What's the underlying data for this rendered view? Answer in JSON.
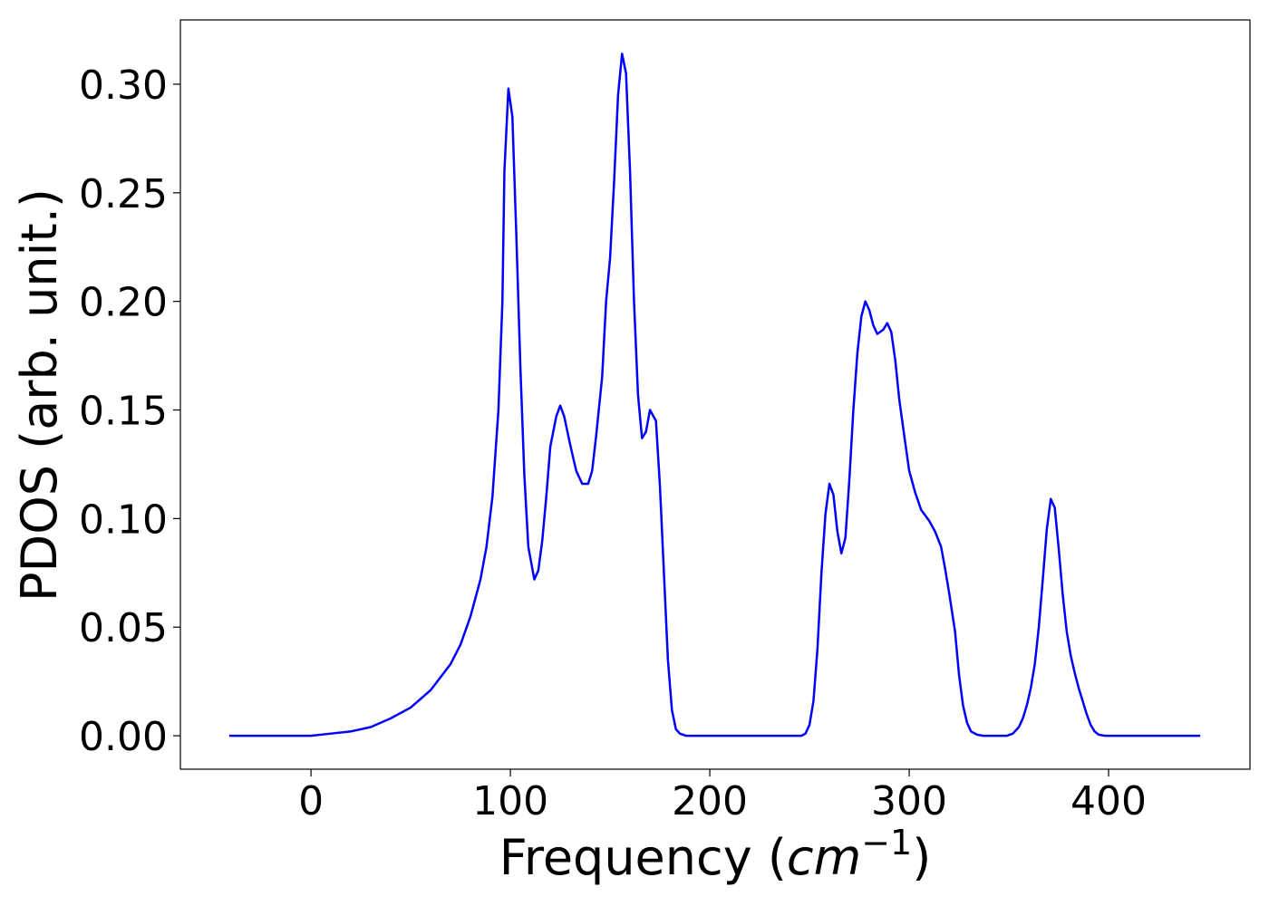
{
  "chart_data": {
    "type": "line",
    "x_label": [
      "Frequency (",
      "cm",
      "−1",
      ")"
    ],
    "y_label": "PDOS (arb. unit.)",
    "xlim": [
      -65.5,
      470.9
    ],
    "ylim": [
      -0.0154,
      0.3296
    ],
    "xticks": [
      0,
      100,
      200,
      300,
      400
    ],
    "yticks": [
      {
        "value": 0,
        "label": "0.00"
      },
      {
        "value": 0.05,
        "label": "0.05"
      },
      {
        "value": 0.1,
        "label": "0.10"
      },
      {
        "value": 0.15,
        "label": "0.15"
      },
      {
        "value": 0.2,
        "label": "0.20"
      },
      {
        "value": 0.25,
        "label": "0.25"
      },
      {
        "value": 0.3,
        "label": "0.30"
      }
    ],
    "grid": false,
    "series": [
      {
        "color": "#0000ff",
        "x": [
          -41,
          0,
          10,
          20,
          30,
          40,
          50,
          60,
          70,
          75,
          80,
          85,
          88,
          91,
          94,
          96,
          97,
          99,
          101,
          103,
          105,
          107,
          109,
          112,
          114,
          116,
          118,
          120,
          123,
          125,
          127,
          130,
          133,
          136,
          139,
          141,
          143,
          146,
          148,
          150,
          152,
          154,
          156,
          158,
          160,
          162,
          164,
          166,
          168,
          170,
          173,
          175,
          177,
          179,
          181,
          183,
          185,
          188,
          246,
          248,
          250,
          252,
          254,
          256,
          258,
          260,
          262,
          264,
          266,
          268,
          270,
          272,
          274,
          276,
          278,
          280,
          282,
          284,
          287,
          289,
          291,
          293,
          295,
          298,
          300,
          303,
          306,
          310,
          313,
          316,
          318,
          320,
          323,
          325,
          327,
          329,
          331,
          334,
          337,
          349,
          352,
          355,
          357,
          359,
          361,
          363,
          365,
          367,
          369,
          371,
          373,
          375,
          377,
          379,
          381,
          383,
          385,
          387,
          389,
          391,
          393,
          395,
          398,
          446
        ],
        "values": [
          0,
          0,
          0.001,
          0.002,
          0.004,
          0.008,
          0.013,
          0.021,
          0.033,
          0.042,
          0.055,
          0.072,
          0.087,
          0.11,
          0.15,
          0.2,
          0.26,
          0.298,
          0.285,
          0.23,
          0.17,
          0.12,
          0.087,
          0.072,
          0.076,
          0.09,
          0.11,
          0.133,
          0.147,
          0.152,
          0.147,
          0.134,
          0.122,
          0.116,
          0.116,
          0.122,
          0.138,
          0.165,
          0.2,
          0.22,
          0.255,
          0.295,
          0.314,
          0.305,
          0.26,
          0.2,
          0.157,
          0.137,
          0.14,
          0.15,
          0.145,
          0.115,
          0.075,
          0.035,
          0.012,
          0.003,
          0.001,
          0,
          0,
          0.001,
          0.005,
          0.016,
          0.04,
          0.075,
          0.102,
          0.116,
          0.111,
          0.094,
          0.084,
          0.091,
          0.118,
          0.15,
          0.176,
          0.193,
          0.2,
          0.196,
          0.189,
          0.185,
          0.187,
          0.19,
          0.186,
          0.173,
          0.155,
          0.135,
          0.122,
          0.112,
          0.104,
          0.099,
          0.094,
          0.087,
          0.077,
          0.066,
          0.048,
          0.028,
          0.014,
          0.006,
          0.002,
          0.0005,
          0,
          0,
          0.001,
          0.004,
          0.008,
          0.014,
          0.022,
          0.033,
          0.05,
          0.072,
          0.095,
          0.109,
          0.105,
          0.086,
          0.065,
          0.048,
          0.037,
          0.029,
          0.022,
          0.016,
          0.01,
          0.005,
          0.002,
          0.0005,
          0,
          0
        ]
      }
    ]
  }
}
